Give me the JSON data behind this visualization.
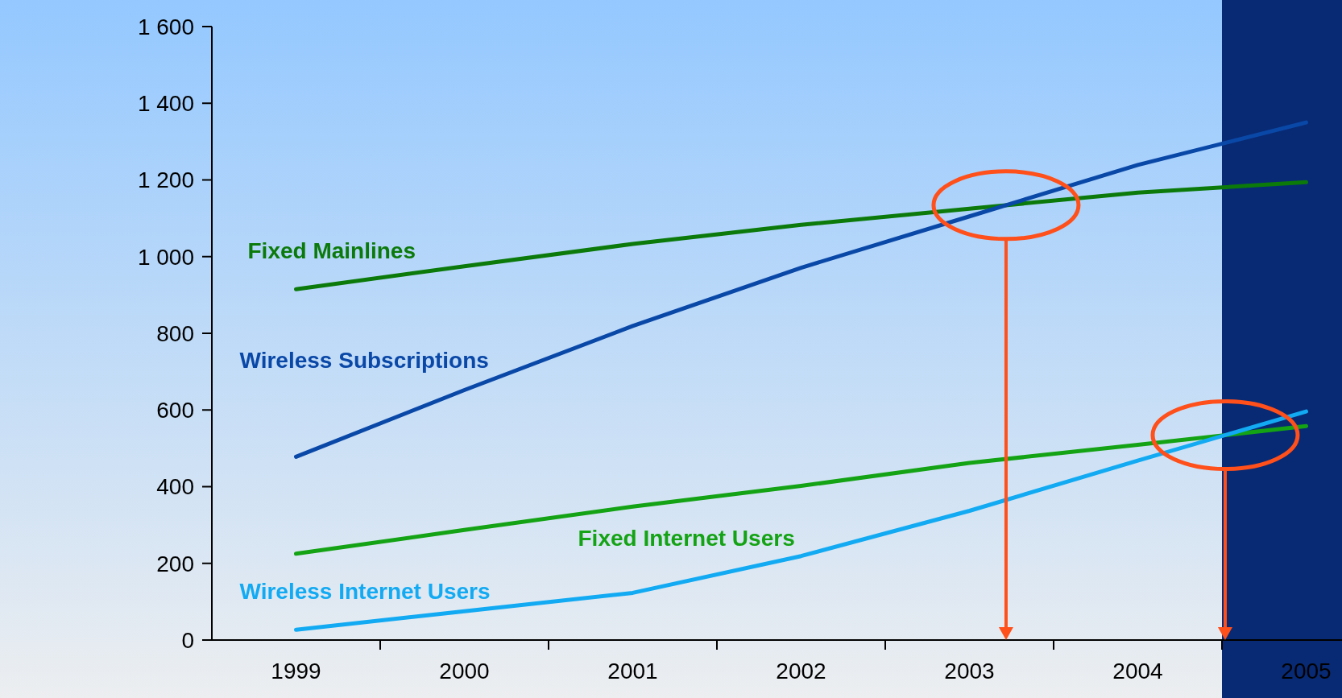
{
  "chart_data": {
    "type": "line",
    "categories": [
      "1999",
      "2000",
      "2001",
      "2002",
      "2003",
      "2004",
      "2005"
    ],
    "series": [
      {
        "name": "Fixed Mainlines",
        "color": "#0b7a0b",
        "values": [
          915,
          975,
          1033,
          1083,
          1125,
          1167,
          1194
        ]
      },
      {
        "name": "Wireless Subscriptions",
        "color": "#0a48a8",
        "values": [
          478,
          652,
          819,
          971,
          1105,
          1239,
          1350
        ]
      },
      {
        "name": "Fixed Internet Users",
        "color": "#14a314",
        "values": [
          225,
          287,
          348,
          402,
          462,
          509,
          558
        ]
      },
      {
        "name": "Wireless Internet Users",
        "color": "#12aaf2",
        "values": [
          27,
          75,
          123,
          219,
          337,
          468,
          596
        ]
      }
    ],
    "ylim": [
      0,
      1600
    ],
    "yticks": [
      0,
      200,
      400,
      600,
      800,
      {
        "value": 1000,
        "label": "1 000"
      },
      {
        "value": 1200,
        "label": "1 200"
      },
      {
        "value": 1400,
        "label": "1 400"
      },
      {
        "value": 1600,
        "label": "1 600"
      }
    ],
    "bands": [
      {
        "axis": "x",
        "from": "2005",
        "to": "2005",
        "color": "#082a74"
      }
    ],
    "grid": false,
    "legend": false,
    "marker": "none",
    "line_style": "solid"
  }
}
